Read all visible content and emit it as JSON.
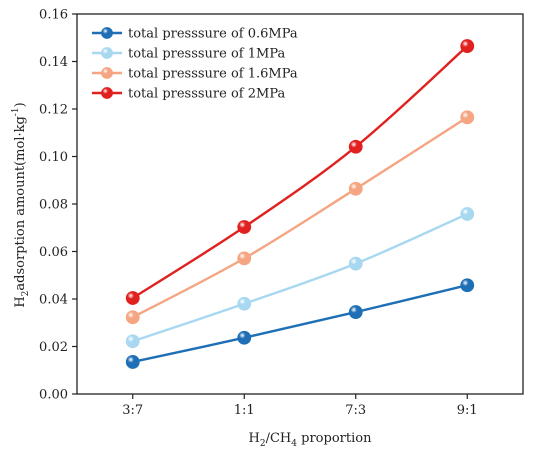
{
  "chart_data": {
    "type": "line",
    "x_label_main": "H",
    "x_label_sub1": "2",
    "x_label_mid": "/CH",
    "x_label_sub2": "4",
    "x_label_tail": " proportion",
    "y_label_main": "H",
    "y_label_sub": "2",
    "y_label_tail": "adsorption amount(mol·kg",
    "y_label_sup": "-1",
    "y_label_end": ")",
    "categories": [
      "3:7",
      "1:1",
      "7:3",
      "9:1"
    ],
    "ylim": [
      0,
      0.16
    ],
    "yticks": [
      "0.00",
      "0.02",
      "0.04",
      "0.06",
      "0.08",
      "0.10",
      "0.12",
      "0.14",
      "0.16"
    ],
    "grid": false,
    "legend_position": "top-left",
    "series": [
      {
        "name": "total presssure of 0.6MPa",
        "color": "#1e6fb5",
        "values": [
          0.0135,
          0.0237,
          0.0345,
          0.0458
        ]
      },
      {
        "name": "total presssure of 1MPa",
        "color": "#a8d8f0",
        "values": [
          0.0222,
          0.038,
          0.0549,
          0.0758
        ]
      },
      {
        "name": "total presssure of 1.6MPa",
        "color": "#f5a582",
        "values": [
          0.0323,
          0.0571,
          0.0864,
          0.1165
        ]
      },
      {
        "name": "total presssure of 2MPa",
        "color": "#e0211f",
        "values": [
          0.0404,
          0.0703,
          0.1041,
          0.1465
        ]
      }
    ]
  }
}
